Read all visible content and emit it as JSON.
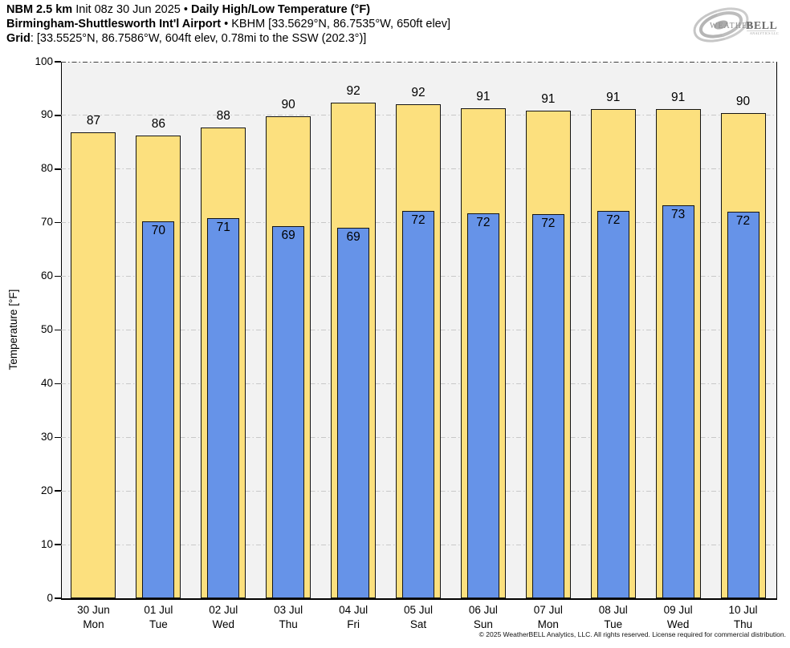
{
  "header": {
    "model": "NBM 2.5 km",
    "init": "Init 08z 30 Jun 2025",
    "separator": "•",
    "product": "Daily High/Low Temperature (°F)",
    "station": "Birmingham-Shuttlesworth Int'l Airport",
    "station_details": "KBHM [33.5629°N, 86.7535°W, 650ft elev]",
    "grid_label": "Grid",
    "grid_details": ": [33.5525°N, 86.7586°W, 604ft elev, 0.78mi to the SSW (202.3°)]"
  },
  "logo": {
    "brand_weather": "Weather",
    "brand_bell": "BELL",
    "tagline": "Analytics LLC"
  },
  "footer": {
    "copyright": "© 2025 WeatherBELL Analytics, LLC. All rights reserved. License required for commercial distribution."
  },
  "chart_data": {
    "type": "bar",
    "title": "Daily High/Low Temperature (°F)",
    "xlabel": "",
    "ylabel": "Temperature [°F]",
    "ylim": [
      0,
      100
    ],
    "yticks": [
      0,
      10,
      20,
      30,
      40,
      50,
      60,
      70,
      80,
      90,
      100
    ],
    "grid": "horizontal dash-dot",
    "legend": "none",
    "categories": [
      {
        "date": "30 Jun",
        "day": "Mon"
      },
      {
        "date": "01 Jul",
        "day": "Tue"
      },
      {
        "date": "02 Jul",
        "day": "Wed"
      },
      {
        "date": "03 Jul",
        "day": "Thu"
      },
      {
        "date": "04 Jul",
        "day": "Fri"
      },
      {
        "date": "05 Jul",
        "day": "Sat"
      },
      {
        "date": "06 Jul",
        "day": "Sun"
      },
      {
        "date": "07 Jul",
        "day": "Mon"
      },
      {
        "date": "08 Jul",
        "day": "Tue"
      },
      {
        "date": "09 Jul",
        "day": "Wed"
      },
      {
        "date": "10 Jul",
        "day": "Thu"
      }
    ],
    "series": [
      {
        "name": "High",
        "color": "#fce07e",
        "values": [
          87,
          86,
          88,
          90,
          92,
          92,
          91,
          91,
          91,
          91,
          90
        ],
        "exact": [
          86.9,
          86.3,
          87.7,
          89.8,
          92.4,
          92.1,
          91.3,
          90.9,
          91.2,
          91.2,
          90.4
        ]
      },
      {
        "name": "Low",
        "color": "#6693e8",
        "values": [
          null,
          70,
          71,
          69,
          69,
          72,
          72,
          72,
          72,
          73,
          72
        ],
        "exact": [
          null,
          70.3,
          70.9,
          69.3,
          69.0,
          72.2,
          71.8,
          71.6,
          72.2,
          73.2,
          72.1
        ]
      }
    ],
    "colors": {
      "plot_bg": "#f2f2f2",
      "gridline": "#c8c8c8",
      "gridline_top": "#3f3f3f",
      "bar_edge": "#141414"
    }
  }
}
